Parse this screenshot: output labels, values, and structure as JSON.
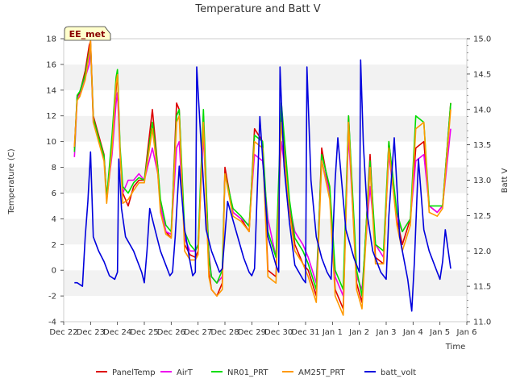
{
  "chart_data": {
    "type": "line",
    "title": "Temperature and Batt V",
    "xlabel": "Time",
    "ylabel": "Temperature (C)",
    "y2label": "Batt V",
    "station_label": "EE_met",
    "x_ticks": [
      "Dec 22",
      "Dec 23",
      "Dec 24",
      "Dec 25",
      "Dec 26",
      "Dec 27",
      "Dec 28",
      "Dec 29",
      "Dec 30",
      "Dec 31",
      "Jan 1",
      "Jan 2",
      "Jan 3",
      "Jan 4",
      "Jan 5",
      "Jan 6"
    ],
    "xlim": [
      0,
      15
    ],
    "ylim": [
      -4,
      18
    ],
    "y_ticks": [
      -4,
      -2,
      0,
      2,
      4,
      6,
      8,
      10,
      12,
      14,
      16,
      18
    ],
    "y2lim": [
      11.0,
      15.0
    ],
    "y2_ticks": [
      11.0,
      11.5,
      12.0,
      12.5,
      13.0,
      13.5,
      14.0,
      14.5,
      15.0
    ],
    "legend_position": "bottom",
    "grid": "alternating horizontal bands",
    "series": [
      {
        "name": "PanelTemp",
        "color": "#dd0000",
        "axis": "left",
        "x": [
          0.4,
          0.5,
          0.6,
          0.8,
          0.95,
          1.0,
          1.1,
          1.3,
          1.5,
          1.6,
          1.8,
          1.95,
          2.0,
          2.1,
          2.2,
          2.4,
          2.6,
          2.8,
          3.0,
          3.3,
          3.5,
          3.6,
          3.8,
          4.0,
          4.2,
          4.3,
          4.5,
          4.7,
          4.9,
          5.0,
          5.2,
          5.4,
          5.5,
          5.7,
          5.9,
          6.0,
          6.3,
          6.6,
          6.9,
          7.1,
          7.4,
          7.6,
          7.9,
          8.1,
          8.4,
          8.6,
          8.9,
          9.1,
          9.4,
          9.6,
          9.9,
          10.1,
          10.4,
          10.6,
          10.9,
          11.1,
          11.4,
          11.6,
          11.9,
          12.1,
          12.4,
          12.6,
          12.9,
          13.1,
          13.4,
          13.6,
          13.9,
          14.1,
          14.4
        ],
        "y": [
          9.5,
          13.5,
          13.8,
          15.5,
          17.5,
          17.8,
          12,
          10.5,
          9,
          5.5,
          10,
          14,
          15.5,
          9,
          6,
          5,
          6.5,
          7,
          7,
          12.5,
          8,
          5,
          3,
          2.5,
          13,
          12.5,
          2,
          1.2,
          1.0,
          1.5,
          12,
          0,
          -1.5,
          -2,
          -1,
          8,
          4.5,
          4,
          3,
          11,
          10,
          0,
          -0.5,
          12,
          5,
          2,
          0.5,
          0,
          -2,
          9.5,
          6,
          -1.5,
          -3,
          12,
          -1,
          -2.5,
          9,
          1,
          0.5,
          10,
          4,
          2,
          4,
          9.5,
          10,
          5,
          4.5,
          5,
          13
        ]
      },
      {
        "name": "AirT",
        "color": "#ee00ee",
        "axis": "left",
        "x": [
          0.4,
          0.5,
          0.6,
          0.8,
          0.95,
          1.0,
          1.1,
          1.3,
          1.5,
          1.6,
          1.8,
          1.95,
          2.0,
          2.1,
          2.2,
          2.4,
          2.6,
          2.8,
          3.0,
          3.3,
          3.5,
          3.6,
          3.8,
          4.0,
          4.2,
          4.3,
          4.5,
          4.7,
          4.9,
          5.0,
          5.2,
          5.4,
          5.5,
          5.7,
          5.9,
          6.0,
          6.3,
          6.6,
          6.9,
          7.1,
          7.4,
          7.6,
          7.9,
          8.1,
          8.4,
          8.6,
          8.9,
          9.1,
          9.4,
          9.6,
          9.9,
          10.1,
          10.4,
          10.6,
          10.9,
          11.1,
          11.4,
          11.6,
          11.9,
          12.1,
          12.4,
          12.6,
          12.9,
          13.1,
          13.4,
          13.6,
          13.9,
          14.1,
          14.4
        ],
        "y": [
          8.8,
          13.3,
          13.6,
          15,
          16,
          17.5,
          11.5,
          10.2,
          8.8,
          5.5,
          9,
          13,
          13.8,
          8.8,
          6,
          7,
          7,
          7.5,
          7,
          9.5,
          7.5,
          5,
          3,
          2.8,
          9.5,
          10,
          2.5,
          1.5,
          1.5,
          2,
          10.5,
          1.5,
          -0.5,
          -1,
          -0.5,
          7.5,
          4.5,
          4,
          3.5,
          9,
          8.5,
          4,
          1,
          10,
          5,
          3,
          2,
          1,
          -1,
          8.5,
          6,
          -0.5,
          -2,
          10.5,
          -0.5,
          -1.5,
          6.5,
          2,
          1,
          9,
          4,
          3,
          4,
          8.5,
          9,
          5,
          4.5,
          5,
          11
        ]
      },
      {
        "name": "NR01_PRT",
        "color": "#00dd00",
        "axis": "left",
        "x": [
          0.4,
          0.5,
          0.6,
          0.8,
          0.95,
          1.0,
          1.1,
          1.3,
          1.5,
          1.6,
          1.8,
          1.95,
          2.0,
          2.1,
          2.2,
          2.4,
          2.6,
          2.8,
          3.0,
          3.3,
          3.5,
          3.6,
          3.8,
          4.0,
          4.2,
          4.3,
          4.5,
          4.7,
          4.9,
          5.0,
          5.2,
          5.4,
          5.5,
          5.7,
          5.9,
          6.0,
          6.3,
          6.6,
          6.9,
          7.1,
          7.4,
          7.6,
          7.9,
          8.1,
          8.4,
          8.6,
          8.9,
          9.1,
          9.4,
          9.6,
          9.9,
          10.1,
          10.4,
          10.6,
          10.9,
          11.1,
          11.4,
          11.6,
          11.9,
          12.1,
          12.4,
          12.6,
          12.9,
          13.1,
          13.4,
          13.6,
          13.9,
          14.1,
          14.4
        ],
        "y": [
          9.2,
          13.6,
          13.9,
          15.2,
          17,
          17.6,
          11.8,
          10.3,
          8.9,
          5.6,
          10.5,
          15,
          15.6,
          9.5,
          6.5,
          6,
          6.8,
          7.2,
          7,
          11.5,
          8,
          5.5,
          3.5,
          3,
          12,
          12.5,
          3,
          2,
          1.5,
          2,
          12.5,
          1,
          -0.5,
          -1,
          0,
          7.5,
          4.8,
          4.2,
          3.4,
          10.5,
          10,
          3,
          1,
          13,
          5.5,
          2.5,
          1.5,
          0.5,
          -1.5,
          9,
          6.5,
          0,
          -1.5,
          12,
          0,
          -2,
          8.5,
          2,
          1.5,
          10,
          4.5,
          3,
          4,
          12,
          11.5,
          5,
          5,
          5,
          13
        ]
      },
      {
        "name": "AM25T_PRT",
        "color": "#ff9900",
        "axis": "left",
        "x": [
          0.4,
          0.5,
          0.6,
          0.8,
          0.95,
          1.0,
          1.1,
          1.3,
          1.5,
          1.6,
          1.8,
          1.95,
          2.0,
          2.1,
          2.2,
          2.4,
          2.6,
          2.8,
          3.0,
          3.3,
          3.5,
          3.6,
          3.8,
          4.0,
          4.2,
          4.3,
          4.5,
          4.7,
          4.9,
          5.0,
          5.2,
          5.4,
          5.5,
          5.7,
          5.9,
          6.0,
          6.3,
          6.6,
          6.9,
          7.1,
          7.4,
          7.6,
          7.9,
          8.1,
          8.4,
          8.6,
          8.9,
          9.1,
          9.4,
          9.6,
          9.9,
          10.1,
          10.4,
          10.6,
          10.9,
          11.1,
          11.4,
          11.6,
          11.9,
          12.1,
          12.4,
          12.6,
          12.9,
          13.1,
          13.4,
          13.6,
          13.9,
          14.1,
          14.4
        ],
        "y": [
          9.6,
          13.2,
          13.5,
          14.8,
          16.8,
          17.9,
          11.5,
          10,
          8.5,
          5.2,
          9.5,
          14.5,
          15.2,
          9,
          5.2,
          5.5,
          6.2,
          6.8,
          6.8,
          11,
          7.5,
          4.5,
          2.8,
          2.5,
          11.5,
          12,
          1.5,
          0.8,
          0.8,
          1.2,
          11.5,
          -0.5,
          -1.5,
          -2,
          -1.5,
          7.5,
          4.2,
          3.8,
          3,
          10,
          9.5,
          -0.5,
          -1,
          11.5,
          4.5,
          1.5,
          0.5,
          -0.5,
          -2.5,
          8.5,
          5.5,
          -2,
          -3.5,
          11.5,
          -1.5,
          -3,
          8,
          0.5,
          0.5,
          9.5,
          3.5,
          1.5,
          3.5,
          11,
          11.5,
          4.5,
          4.2,
          4.8,
          12.5
        ]
      },
      {
        "name": "batt_volt",
        "color": "#0000dd",
        "axis": "right",
        "x": [
          0.4,
          0.5,
          0.7,
          0.8,
          0.9,
          1.0,
          1.1,
          1.3,
          1.5,
          1.7,
          1.9,
          2.0,
          2.05,
          2.15,
          2.3,
          2.6,
          2.9,
          3.0,
          3.1,
          3.2,
          3.4,
          3.6,
          3.8,
          3.95,
          4.05,
          4.15,
          4.3,
          4.5,
          4.7,
          4.8,
          4.9,
          4.95,
          5.1,
          5.3,
          5.5,
          5.7,
          5.8,
          5.9,
          6.1,
          6.4,
          6.7,
          6.9,
          7.0,
          7.1,
          7.3,
          7.6,
          7.9,
          8.0,
          8.05,
          8.2,
          8.4,
          8.6,
          8.9,
          9.0,
          9.05,
          9.2,
          9.4,
          9.6,
          9.8,
          9.95,
          10.1,
          10.2,
          10.5,
          10.8,
          11.0,
          11.05,
          11.15,
          11.3,
          11.5,
          11.8,
          12.0,
          12.1,
          12.3,
          12.5,
          12.8,
          12.95,
          13.05,
          13.2,
          13.4,
          13.6,
          13.9,
          14.0,
          14.1,
          14.2,
          14.4
        ],
        "y": [
          11.55,
          11.55,
          11.5,
          12.2,
          12.7,
          13.4,
          12.2,
          12.0,
          11.85,
          11.65,
          11.6,
          11.7,
          13.3,
          12.6,
          12.2,
          12.0,
          11.7,
          11.55,
          12.0,
          12.6,
          12.3,
          12.0,
          11.8,
          11.65,
          11.7,
          12.2,
          13.2,
          12.3,
          11.85,
          11.65,
          11.7,
          14.6,
          13.6,
          12.3,
          12.0,
          11.8,
          11.7,
          11.75,
          12.7,
          12.3,
          11.9,
          11.7,
          11.65,
          11.75,
          13.9,
          12.2,
          11.8,
          11.7,
          14.6,
          13.2,
          12.4,
          11.8,
          11.6,
          11.55,
          14.6,
          13.0,
          12.2,
          11.9,
          11.7,
          11.6,
          13.0,
          13.6,
          12.3,
          11.9,
          11.7,
          14.7,
          13.5,
          12.5,
          12.0,
          11.7,
          11.6,
          12.5,
          13.6,
          12.2,
          11.6,
          11.15,
          11.85,
          13.3,
          12.3,
          12.0,
          11.7,
          11.6,
          11.85,
          12.3,
          11.75
        ]
      }
    ]
  }
}
